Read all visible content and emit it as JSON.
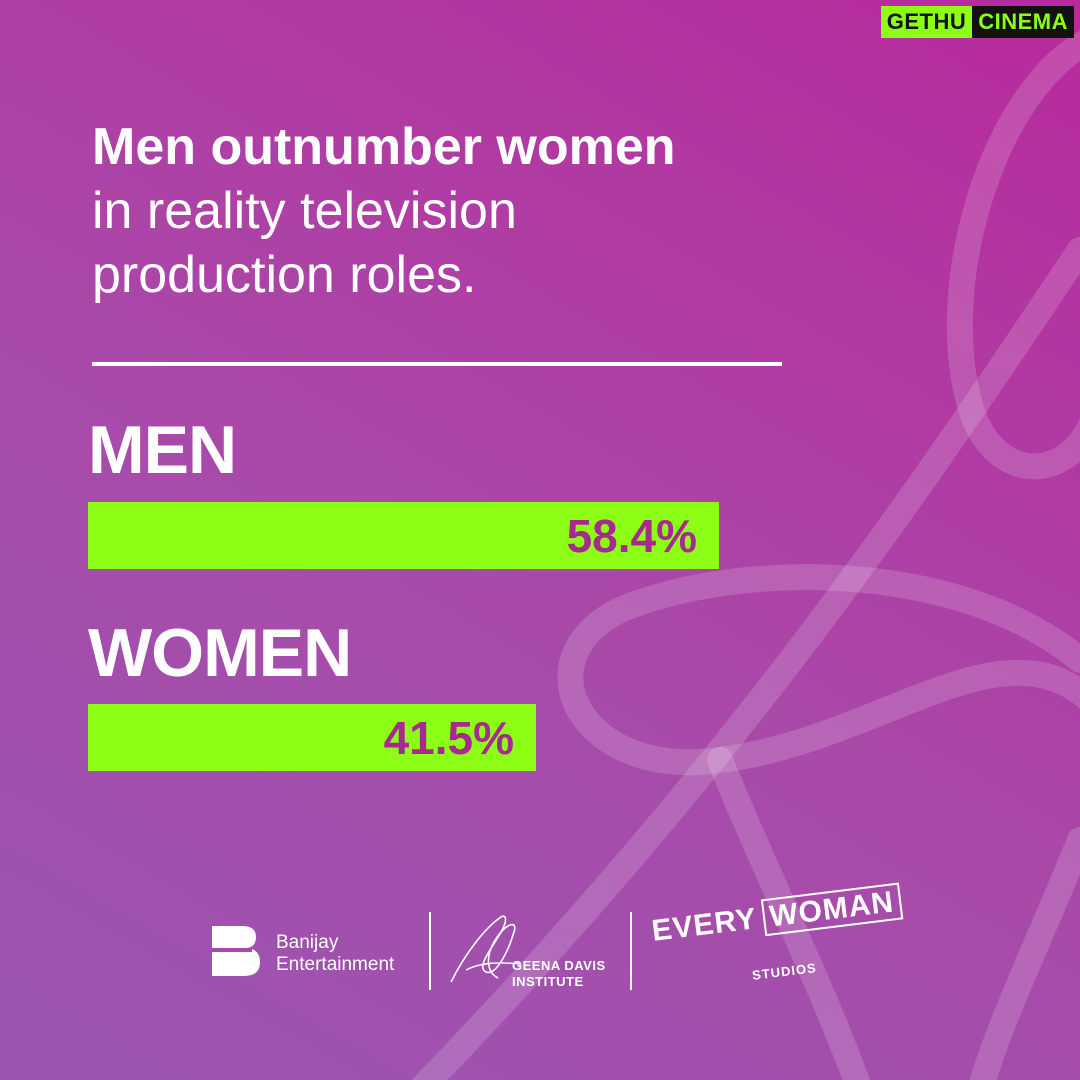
{
  "watermark": {
    "part1": "GETHU",
    "part2": "CINEMA"
  },
  "headline": {
    "bold": "Men outnumber women",
    "line2": "in reality television",
    "line3": "production roles."
  },
  "chart_data": {
    "type": "bar",
    "orientation": "horizontal",
    "categories": [
      "MEN",
      "WOMEN"
    ],
    "values": [
      58.4,
      41.5
    ],
    "value_labels": [
      "58.4%",
      "41.5%"
    ],
    "unit": "%",
    "title": "",
    "xlabel": "",
    "ylabel": "",
    "xlim": [
      0,
      100
    ],
    "grid": false,
    "legend": "none",
    "bar_color": "#8dff17",
    "value_label_color": "#a62a8f"
  },
  "logos": {
    "banijay": {
      "line1": "Banijay",
      "line2": "Entertainment"
    },
    "geena": {
      "line1": "GEENA DAVIS",
      "line2": "INSTITUTE"
    },
    "everywoman": {
      "word1": "EVERY",
      "word2": "WOMAN",
      "sub": "STUDIOS"
    }
  },
  "colors": {
    "accent": "#8dff17",
    "text": "#ffffff",
    "background_start": "#9a56b2",
    "background_end": "#b82a9c"
  }
}
